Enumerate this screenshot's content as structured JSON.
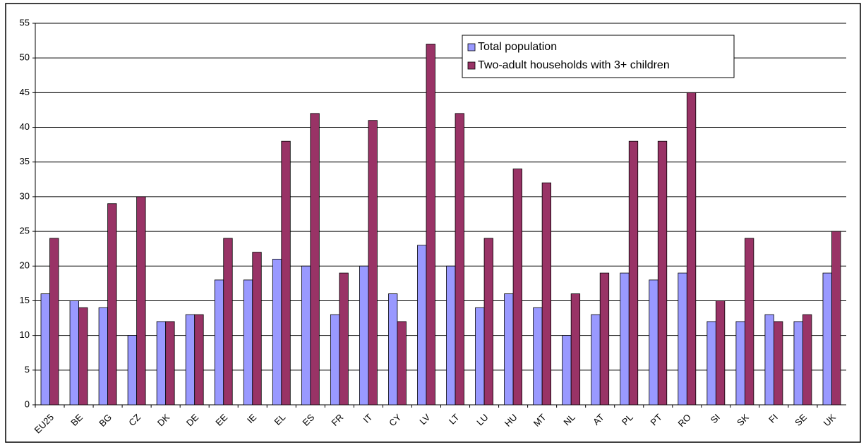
{
  "chart_data": {
    "type": "bar",
    "categories": [
      "EU25",
      "BE",
      "BG",
      "CZ",
      "DK",
      "DE",
      "EE",
      "IE",
      "EL",
      "ES",
      "FR",
      "IT",
      "CY",
      "LV",
      "LT",
      "LU",
      "HU",
      "MT",
      "NL",
      "AT",
      "PL",
      "PT",
      "RO",
      "SI",
      "SK",
      "FI",
      "SE",
      "UK"
    ],
    "series": [
      {
        "name": "Total population",
        "color": "#9999ff",
        "values": [
          16,
          15,
          14,
          10,
          12,
          13,
          18,
          18,
          21,
          20,
          13,
          20,
          16,
          23,
          20,
          14,
          16,
          14,
          10,
          13,
          19,
          18,
          19,
          12,
          12,
          13,
          12,
          19
        ]
      },
      {
        "name": "Two-adult households with 3+ children",
        "color": "#993366",
        "values": [
          24,
          14,
          29,
          30,
          12,
          13,
          24,
          22,
          38,
          42,
          19,
          41,
          12,
          52,
          42,
          24,
          34,
          32,
          16,
          19,
          38,
          38,
          45,
          15,
          24,
          12,
          13,
          25
        ]
      }
    ],
    "ylim": [
      0,
      55
    ],
    "yticks": [
      0,
      5,
      10,
      15,
      20,
      25,
      30,
      35,
      40,
      45,
      50,
      55
    ],
    "grid": true,
    "legend": "top-right"
  }
}
